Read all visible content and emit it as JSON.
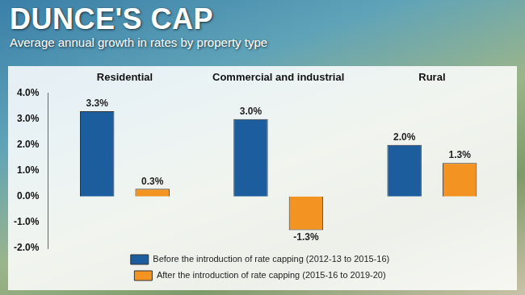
{
  "chart_data": {
    "type": "bar",
    "title": "DUNCE'S CAP",
    "subtitle": "Average annual growth in rates by property type",
    "categories": [
      "Residential",
      "Commercial and industrial",
      "Rural"
    ],
    "series": [
      {
        "name": "Before the introduction of rate capping (2012-13 to 2015-16)",
        "color": "#1c5d9e",
        "values": [
          3.3,
          3.0,
          2.0
        ],
        "value_labels": [
          "3.3%",
          "3.0%",
          "2.0%"
        ]
      },
      {
        "name": "After the introduction of rate capping (2015-16 to 2019-20)",
        "color": "#f39322",
        "values": [
          0.3,
          -1.3,
          1.3
        ],
        "value_labels": [
          "0.3%",
          "-1.3%",
          "1.3%"
        ]
      }
    ],
    "ylim": [
      -2,
      4
    ],
    "yticks": [
      {
        "value": -2,
        "label": "-2.0%"
      },
      {
        "value": -1,
        "label": "-1.0%"
      },
      {
        "value": 0,
        "label": "0.0%"
      },
      {
        "value": 1,
        "label": "1.0%"
      },
      {
        "value": 2,
        "label": "2.0%"
      },
      {
        "value": 3,
        "label": "3.0%"
      },
      {
        "value": 4,
        "label": "4.0%"
      }
    ],
    "grid": false,
    "legend": "bottom",
    "data_labels": true
  }
}
